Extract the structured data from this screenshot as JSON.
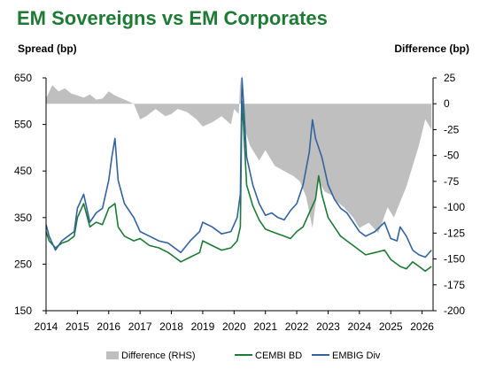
{
  "chart_data": {
    "type": "line",
    "title": "EM Sovereigns vs EM Corporates",
    "y_left_label": "Spread (bp)",
    "y_right_label": "Difference (bp)",
    "x_ticks": [
      "2014",
      "2015",
      "2016",
      "2017",
      "2018",
      "2019",
      "2020",
      "2021",
      "2022",
      "2023",
      "2024",
      "2025",
      "2026"
    ],
    "y_left_ticks": [
      "650",
      "550",
      "450",
      "350",
      "250",
      "150"
    ],
    "y_right_ticks": [
      "25",
      "0",
      "-25",
      "-50",
      "-75",
      "-100",
      "-125",
      "-150",
      "-175",
      "-200"
    ],
    "ylim_left": [
      150,
      650
    ],
    "ylim_right": [
      -200,
      25
    ],
    "xlim": [
      2014.0,
      2026.35
    ],
    "legend_position": "bottom",
    "grid": false,
    "series": [
      {
        "name": "Difference (RHS)",
        "kind": "area",
        "axis": "right",
        "color": "#bfbfbf",
        "x": [
          2014.0,
          2014.2,
          2014.4,
          2014.6,
          2014.8,
          2015.0,
          2015.2,
          2015.4,
          2015.6,
          2015.8,
          2016.0,
          2016.2,
          2016.5,
          2016.8,
          2017.0,
          2017.2,
          2017.5,
          2017.8,
          2018.0,
          2018.2,
          2018.5,
          2018.8,
          2019.0,
          2019.3,
          2019.6,
          2019.9,
          2020.0,
          2020.15,
          2020.2,
          2020.25,
          2020.3,
          2020.5,
          2020.8,
          2021.0,
          2021.3,
          2021.6,
          2021.9,
          2022.1,
          2022.3,
          2022.5,
          2022.7,
          2022.9,
          2023.1,
          2023.3,
          2023.5,
          2023.8,
          2024.0,
          2024.3,
          2024.6,
          2024.9,
          2025.1,
          2025.3,
          2025.5,
          2025.7,
          2025.9,
          2026.1,
          2026.3
        ],
        "y": [
          5,
          18,
          12,
          15,
          10,
          8,
          6,
          9,
          4,
          5,
          12,
          8,
          4,
          0,
          -15,
          -12,
          -5,
          -12,
          -10,
          -5,
          -8,
          -15,
          -22,
          -18,
          -12,
          -20,
          -5,
          -10,
          25,
          0,
          -20,
          -40,
          -55,
          -45,
          -60,
          -65,
          -70,
          -75,
          -90,
          -120,
          -75,
          -85,
          -88,
          -95,
          -100,
          -110,
          -120,
          -115,
          -125,
          -100,
          -110,
          -95,
          -80,
          -60,
          -40,
          -15,
          -25
        ]
      },
      {
        "name": "CEMBI BD",
        "kind": "line",
        "axis": "left",
        "color": "#1e7a35",
        "x": [
          2014.0,
          2014.1,
          2014.3,
          2014.5,
          2014.7,
          2014.9,
          2015.0,
          2015.2,
          2015.4,
          2015.6,
          2015.8,
          2016.0,
          2016.2,
          2016.3,
          2016.5,
          2016.8,
          2017.0,
          2017.3,
          2017.6,
          2017.9,
          2018.0,
          2018.3,
          2018.6,
          2018.9,
          2019.0,
          2019.3,
          2019.6,
          2019.9,
          2020.1,
          2020.2,
          2020.25,
          2020.3,
          2020.4,
          2020.6,
          2020.8,
          2021.0,
          2021.2,
          2021.4,
          2021.6,
          2021.8,
          2022.0,
          2022.2,
          2022.4,
          2022.6,
          2022.7,
          2022.8,
          2023.0,
          2023.2,
          2023.4,
          2023.6,
          2023.8,
          2024.0,
          2024.2,
          2024.5,
          2024.8,
          2025.0,
          2025.2,
          2025.3,
          2025.5,
          2025.7,
          2025.9,
          2026.1,
          2026.3
        ],
        "y": [
          320,
          300,
          285,
          295,
          300,
          310,
          350,
          380,
          330,
          340,
          335,
          370,
          380,
          330,
          310,
          300,
          305,
          290,
          285,
          275,
          270,
          255,
          265,
          275,
          300,
          290,
          280,
          285,
          300,
          330,
          600,
          550,
          420,
          375,
          345,
          325,
          320,
          315,
          310,
          305,
          320,
          330,
          360,
          390,
          440,
          400,
          350,
          330,
          310,
          300,
          290,
          280,
          270,
          275,
          280,
          260,
          250,
          245,
          240,
          255,
          245,
          235,
          245
        ]
      },
      {
        "name": "EMBIG Div",
        "kind": "line",
        "axis": "left",
        "color": "#33629e",
        "x": [
          2014.0,
          2014.1,
          2014.3,
          2014.5,
          2014.7,
          2014.9,
          2015.0,
          2015.2,
          2015.4,
          2015.6,
          2015.8,
          2016.0,
          2016.1,
          2016.2,
          2016.3,
          2016.5,
          2016.8,
          2017.0,
          2017.3,
          2017.6,
          2017.9,
          2018.0,
          2018.3,
          2018.6,
          2018.9,
          2019.0,
          2019.3,
          2019.6,
          2019.9,
          2020.1,
          2020.2,
          2020.25,
          2020.3,
          2020.4,
          2020.6,
          2020.8,
          2021.0,
          2021.2,
          2021.4,
          2021.6,
          2021.8,
          2022.0,
          2022.2,
          2022.4,
          2022.5,
          2022.6,
          2022.8,
          2023.0,
          2023.2,
          2023.4,
          2023.6,
          2023.8,
          2024.0,
          2024.2,
          2024.5,
          2024.8,
          2025.0,
          2025.2,
          2025.3,
          2025.5,
          2025.7,
          2025.9,
          2026.1,
          2026.3
        ],
        "y": [
          335,
          310,
          280,
          300,
          310,
          320,
          370,
          400,
          340,
          360,
          370,
          430,
          480,
          520,
          430,
          380,
          350,
          320,
          310,
          300,
          295,
          290,
          275,
          300,
          320,
          340,
          330,
          315,
          320,
          350,
          400,
          650,
          600,
          480,
          420,
          380,
          355,
          360,
          350,
          345,
          365,
          380,
          420,
          490,
          560,
          520,
          480,
          420,
          390,
          370,
          360,
          340,
          320,
          310,
          320,
          340,
          305,
          300,
          330,
          310,
          280,
          270,
          265,
          280
        ]
      }
    ]
  }
}
